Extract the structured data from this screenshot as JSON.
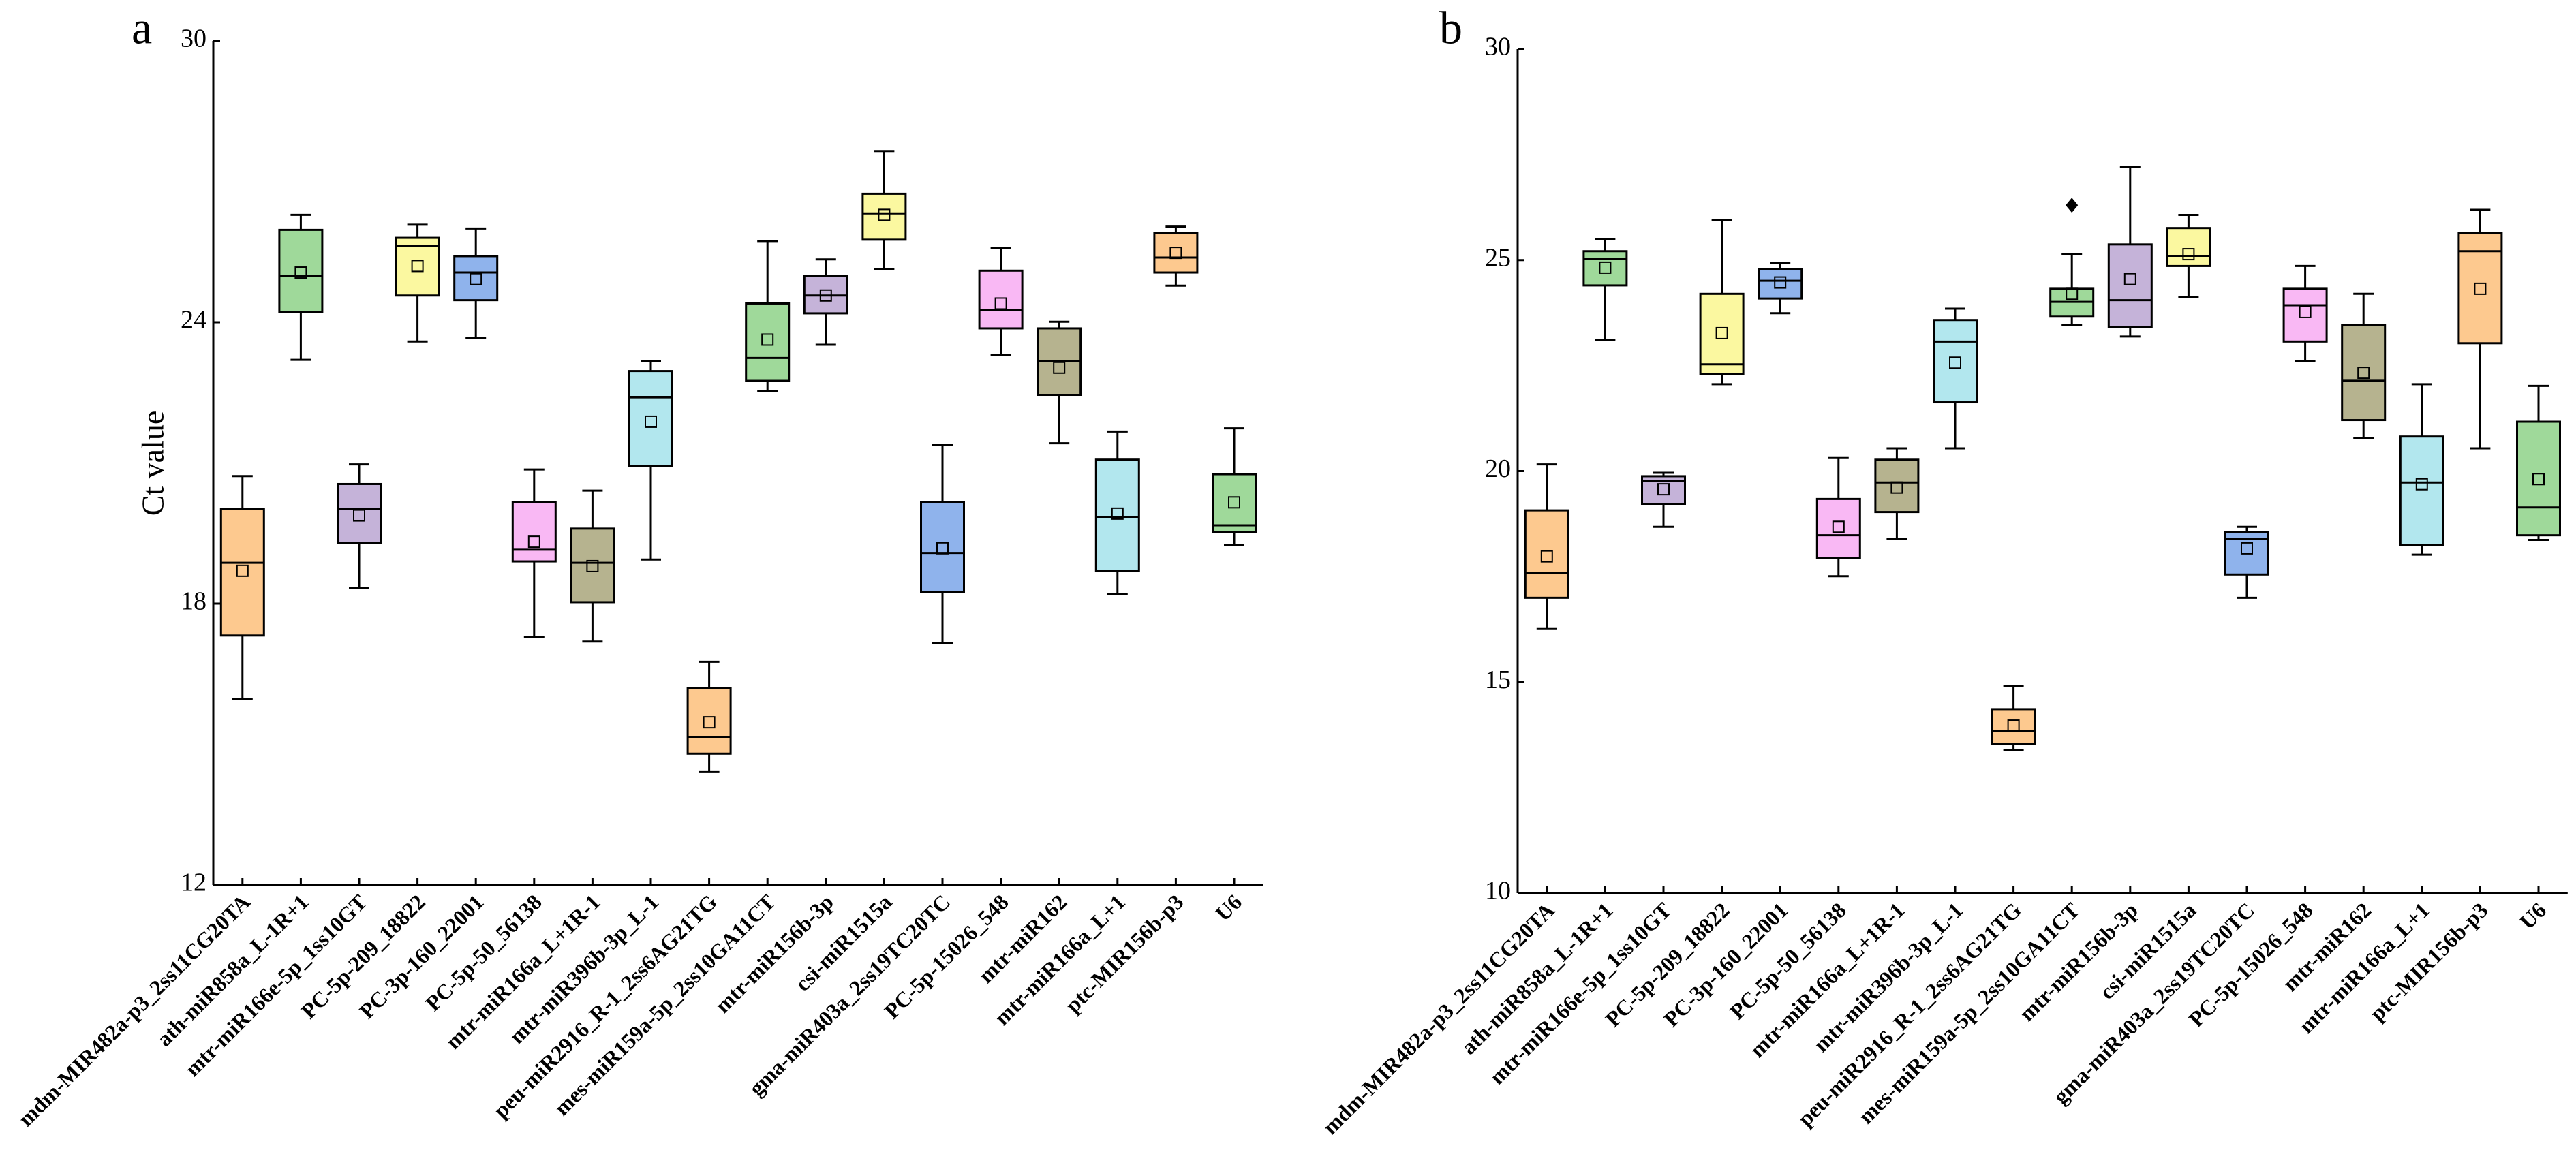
{
  "chart_data": [
    {
      "type": "box",
      "label": "a",
      "ylabel": "Ct value",
      "categories": [
        "mdm-MIR482a-p3_2ss11CG20TA",
        "ath-miR858a_L-1R+1",
        "mtr-miR166e-5p_1ss10GT",
        "PC-5p-209_18822",
        "PC-3p-160_22001",
        "PC-5p-50_56138",
        "mtr-miR166a_L+1R-1",
        "mtr-miR396b-3p_L-1",
        "peu-miR2916_R-1_2ss6AG21TG",
        "mes-miR159a-5p_2ss10GA11CT",
        "mtr-miR156b-3p",
        "csi-miR1515a",
        "gma-miR403a_2ss19TC20TC",
        "PC-5p-15026_548",
        "mtr-miR162",
        "mtr-miR166a_L+1",
        "ptc-MIR156b-p3",
        "U6"
      ],
      "colors": [
        "#fdc98f",
        "#9fd99a",
        "#c5b3d9",
        "#fbf8a0",
        "#8fb3ec",
        "#f9b8f4",
        "#b6b38f",
        "#b2e7ee",
        "#fdc98f",
        "#9fd99a",
        "#c5b3d9",
        "#fbf8a0",
        "#8fb3ec",
        "#f9b8f4",
        "#b6b38f",
        "#b2e7ee",
        "#fdc98f",
        "#9fd99a"
      ],
      "whisker_low": [
        15.96,
        23.2,
        18.34,
        23.59,
        23.66,
        17.29,
        17.19,
        18.94,
        14.42,
        22.54,
        23.52,
        25.13,
        17.15,
        23.31,
        21.42,
        18.2,
        24.78,
        19.25
      ],
      "q1": [
        17.32,
        24.22,
        19.29,
        24.57,
        24.47,
        18.9,
        18.03,
        20.93,
        14.8,
        22.75,
        24.19,
        25.76,
        18.24,
        23.87,
        22.44,
        18.69,
        25.06,
        19.53
      ],
      "median": [
        18.87,
        24.99,
        20.02,
        25.62,
        25.06,
        19.15,
        18.87,
        22.4,
        15.15,
        23.24,
        24.57,
        26.32,
        19.08,
        24.26,
        23.17,
        19.85,
        25.38,
        19.67
      ],
      "q3": [
        20.02,
        25.97,
        20.55,
        25.8,
        25.41,
        20.16,
        19.6,
        22.96,
        16.2,
        24.4,
        24.99,
        26.74,
        20.16,
        25.1,
        23.87,
        21.07,
        25.9,
        20.76
      ],
      "whisker_high": [
        20.72,
        26.29,
        20.97,
        26.08,
        26.0,
        20.86,
        20.41,
        23.17,
        16.76,
        25.73,
        25.34,
        27.65,
        21.39,
        25.59,
        24.01,
        21.67,
        26.04,
        21.74
      ],
      "means": [
        18.7,
        25.06,
        19.88,
        25.2,
        24.92,
        19.32,
        18.8,
        21.88,
        15.47,
        23.63,
        24.57,
        26.29,
        19.18,
        24.4,
        23.03,
        19.92,
        25.48,
        20.16
      ],
      "outliers": [
        [],
        [],
        [],
        [],
        [],
        [],
        [],
        [],
        [],
        [],
        [],
        [],
        [],
        [],
        [],
        [],
        [],
        []
      ],
      "ylim": [
        12,
        30
      ],
      "yticks": [
        12,
        18,
        24,
        30
      ]
    },
    {
      "type": "box",
      "label": "b",
      "categories": [
        "mdm-MIR482a-p3_2ss11CG20TA",
        "ath-miR858a_L-1R+1",
        "mtr-miR166e-5p_1ss10GT",
        "PC-5p-209_18822",
        "PC-3p-160_22001",
        "PC-5p-50_56138",
        "mtr-miR166a_L+1R-1",
        "mtr-miR396b-3p_L-1",
        "peu-miR2916_R-1_2ss6AG21TG",
        "mes-miR159a-5p_2ss10GA11CT",
        "mtr-miR156b-3p",
        "csi-miR1515a",
        "gma-miR403a_2ss19TC20TC",
        "PC-5p-15026_548",
        "mtr-miR162",
        "mtr-miR166a_L+1",
        "ptc-MIR156b-p3",
        "U6"
      ],
      "colors": [
        "#fdc98f",
        "#9fd99a",
        "#c5b3d9",
        "#fbf8a0",
        "#8fb3ec",
        "#f9b8f4",
        "#b6b38f",
        "#b2e7ee",
        "#fdc98f",
        "#9fd99a",
        "#c5b3d9",
        "#fbf8a0",
        "#8fb3ec",
        "#f9b8f4",
        "#b6b38f",
        "#b2e7ee",
        "#fdc98f",
        "#9fd99a"
      ],
      "whisker_low": [
        16.26,
        23.11,
        18.68,
        22.06,
        23.74,
        17.51,
        18.4,
        20.54,
        13.39,
        23.46,
        23.19,
        24.12,
        17.0,
        22.61,
        20.78,
        18.02,
        20.54,
        18.37
      ],
      "q1": [
        17.0,
        24.4,
        19.22,
        22.3,
        24.09,
        17.94,
        19.03,
        21.63,
        13.54,
        23.66,
        23.42,
        24.86,
        17.55,
        23.07,
        21.21,
        18.25,
        23.03,
        18.48
      ],
      "median": [
        17.59,
        25.02,
        19.77,
        22.53,
        24.51,
        18.48,
        19.73,
        23.07,
        13.85,
        24.01,
        24.05,
        25.1,
        18.4,
        23.93,
        22.14,
        19.73,
        25.21,
        19.14
      ],
      "q3": [
        19.07,
        25.21,
        19.88,
        24.2,
        24.79,
        19.34,
        20.27,
        23.58,
        14.36,
        24.32,
        25.37,
        25.76,
        18.56,
        24.32,
        23.46,
        20.82,
        25.64,
        21.17
      ],
      "whisker_high": [
        20.16,
        25.49,
        19.96,
        25.95,
        24.94,
        20.31,
        20.54,
        23.85,
        14.9,
        25.14,
        27.2,
        26.07,
        18.68,
        24.86,
        24.2,
        22.06,
        26.19,
        22.02
      ],
      "means": [
        17.98,
        24.82,
        19.57,
        23.27,
        24.47,
        18.68,
        19.61,
        22.57,
        13.97,
        24.2,
        24.55,
        25.14,
        18.17,
        23.77,
        22.33,
        19.69,
        24.32,
        19.81
      ],
      "outliers": [
        [],
        [],
        [],
        [],
        [],
        [],
        [],
        [],
        [],
        [
          26.3
        ],
        [],
        [],
        [],
        [],
        [],
        [],
        [],
        []
      ],
      "ylim": [
        10,
        30
      ],
      "yticks": [
        10,
        15,
        20,
        25,
        30
      ]
    }
  ]
}
